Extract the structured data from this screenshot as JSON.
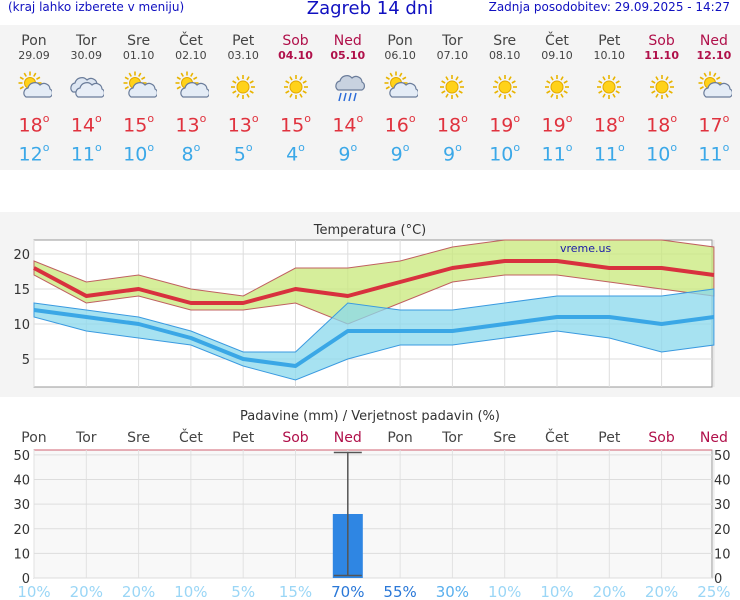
{
  "header": {
    "hint": "(kraj lahko izberete v meniju)",
    "title": "Zagreb 14 dni",
    "updated": "Zadnja posodobitev: 29.09.2025 - 14:27"
  },
  "days": [
    {
      "name": "Pon",
      "date": "29.09",
      "icon": "sun-cloud-icon",
      "max": "18",
      "min": "12",
      "weekend": false
    },
    {
      "name": "Tor",
      "date": "30.09",
      "icon": "cloud-icon",
      "max": "14",
      "min": "11",
      "weekend": false
    },
    {
      "name": "Sre",
      "date": "01.10",
      "icon": "sun-cloud-icon",
      "max": "15",
      "min": "10",
      "weekend": false
    },
    {
      "name": "Čet",
      "date": "02.10",
      "icon": "sun-cloud-icon",
      "max": "13",
      "min": "8",
      "weekend": false
    },
    {
      "name": "Pet",
      "date": "03.10",
      "icon": "sun-icon",
      "max": "13",
      "min": "5",
      "weekend": false
    },
    {
      "name": "Sob",
      "date": "04.10",
      "icon": "sun-icon",
      "max": "15",
      "min": "4",
      "weekend": true
    },
    {
      "name": "Ned",
      "date": "05.10",
      "icon": "rain-cloud-icon",
      "max": "14",
      "min": "9",
      "weekend": true
    },
    {
      "name": "Pon",
      "date": "06.10",
      "icon": "sun-cloud-icon",
      "max": "16",
      "min": "9",
      "weekend": false
    },
    {
      "name": "Tor",
      "date": "07.10",
      "icon": "sun-icon",
      "max": "18",
      "min": "9",
      "weekend": false
    },
    {
      "name": "Sre",
      "date": "08.10",
      "icon": "sun-icon",
      "max": "19",
      "min": "10",
      "weekend": false
    },
    {
      "name": "Čet",
      "date": "09.10",
      "icon": "sun-icon",
      "max": "19",
      "min": "11",
      "weekend": false
    },
    {
      "name": "Pet",
      "date": "10.10",
      "icon": "sun-icon",
      "max": "18",
      "min": "11",
      "weekend": false
    },
    {
      "name": "Sob",
      "date": "11.10",
      "icon": "sun-icon",
      "max": "18",
      "min": "10",
      "weekend": true
    },
    {
      "name": "Ned",
      "date": "12.10",
      "icon": "sun-cloud-icon",
      "max": "17",
      "min": "11",
      "weekend": true
    }
  ],
  "degree_symbol": "o",
  "chart_data": [
    {
      "type": "line",
      "title": "Temperatura (°C)",
      "watermark": "vreme.us",
      "x": [
        "29.09",
        "30.09",
        "01.10",
        "02.10",
        "03.10",
        "04.10",
        "05.10",
        "06.10",
        "07.10",
        "08.10",
        "09.10",
        "10.10",
        "11.10",
        "12.10"
      ],
      "yticks": [
        5,
        10,
        15,
        20
      ],
      "ylim": [
        1,
        22
      ],
      "grid": true,
      "series": [
        {
          "values": [
            18,
            14,
            15,
            13,
            13,
            15,
            14,
            16,
            18,
            19,
            19,
            18,
            18,
            17
          ],
          "color": "#d8313e"
        },
        {
          "values": [
            12,
            11,
            10,
            8,
            5,
            4,
            9,
            9,
            9,
            10,
            11,
            11,
            10,
            11
          ],
          "color": "#3aa7e6"
        }
      ],
      "max_band": {
        "lower": [
          17,
          13,
          14,
          12,
          12,
          13,
          10,
          13,
          16,
          17,
          17,
          16,
          15,
          14
        ],
        "upper": [
          19,
          16,
          17,
          15,
          14,
          18,
          18,
          19,
          21,
          22,
          22,
          22,
          22,
          21
        ],
        "color": "#c8e87a"
      },
      "min_band": {
        "lower": [
          11,
          9,
          8,
          7,
          4,
          2,
          5,
          7,
          7,
          8,
          9,
          8,
          6,
          7
        ],
        "upper": [
          13,
          12,
          11,
          9,
          6,
          6,
          13,
          12,
          12,
          13,
          14,
          14,
          14,
          15
        ],
        "color": "#8ad8ec"
      }
    },
    {
      "type": "bar",
      "title": "Padavine (mm) / Verjetnost padavin (%)",
      "categories": [
        "Pon",
        "Tor",
        "Sre",
        "Čet",
        "Pet",
        "Sob",
        "Ned",
        "Pon",
        "Tor",
        "Sre",
        "Čet",
        "Pet",
        "Sob",
        "Ned"
      ],
      "weekend": [
        false,
        false,
        false,
        false,
        false,
        true,
        true,
        false,
        false,
        false,
        false,
        false,
        true,
        true
      ],
      "values": [
        0,
        0,
        0,
        0,
        0,
        0,
        26,
        0,
        0,
        0,
        0,
        0,
        0,
        0
      ],
      "error_high": [
        null,
        null,
        null,
        null,
        null,
        null,
        51,
        null,
        null,
        null,
        null,
        null,
        null,
        null
      ],
      "error_low": [
        null,
        null,
        null,
        null,
        null,
        null,
        1,
        null,
        null,
        null,
        null,
        null,
        null,
        null
      ],
      "probability": [
        "10%",
        "20%",
        "20%",
        "10%",
        "5%",
        "15%",
        "70%",
        "55%",
        "30%",
        "10%",
        "10%",
        "20%",
        "20%",
        "25%"
      ],
      "probability_values": [
        10,
        20,
        20,
        10,
        5,
        15,
        70,
        55,
        30,
        10,
        10,
        20,
        20,
        25
      ],
      "yticks": [
        0,
        10,
        20,
        30,
        40,
        50
      ],
      "ylim": [
        0,
        52
      ],
      "bar_color": "#2f86e3",
      "grid": true
    }
  ]
}
